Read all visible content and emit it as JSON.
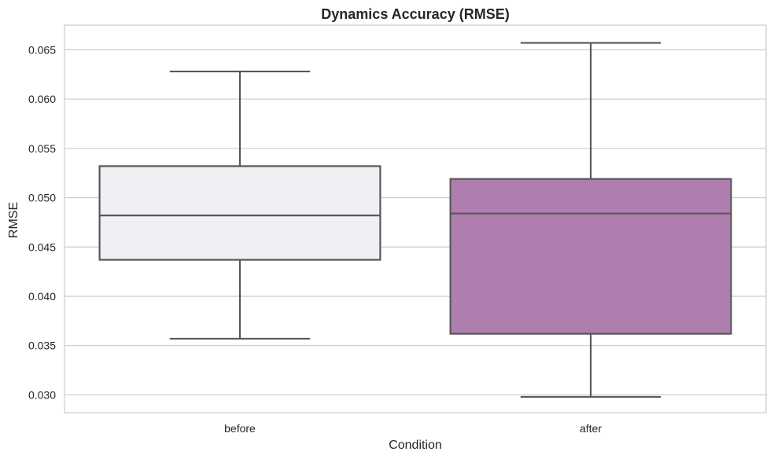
{
  "chart_data": {
    "type": "box",
    "title": "Dynamics Accuracy (RMSE)",
    "xlabel": "Condition",
    "ylabel": "RMSE",
    "categories": [
      "before",
      "after"
    ],
    "boxes": [
      {
        "category": "before",
        "whisker_low": 0.0357,
        "q1": 0.0437,
        "median": 0.0482,
        "q3": 0.0532,
        "whisker_high": 0.0628,
        "color": "#f1eff3"
      },
      {
        "category": "after",
        "whisker_low": 0.0298,
        "q1": 0.0362,
        "median": 0.0484,
        "q3": 0.0519,
        "whisker_high": 0.0657,
        "color": "#b07eae"
      }
    ],
    "yticks": [
      0.03,
      0.035,
      0.04,
      0.045,
      0.05,
      0.055,
      0.06,
      0.065
    ],
    "ytick_labels": [
      "0.030",
      "0.035",
      "0.040",
      "0.045",
      "0.050",
      "0.055",
      "0.060",
      "0.065"
    ],
    "ylim": [
      0.0282,
      0.0675
    ],
    "grid": true,
    "colors": {
      "line": "#595959",
      "grid": "#cccccc",
      "frame": "#cccccc"
    }
  }
}
